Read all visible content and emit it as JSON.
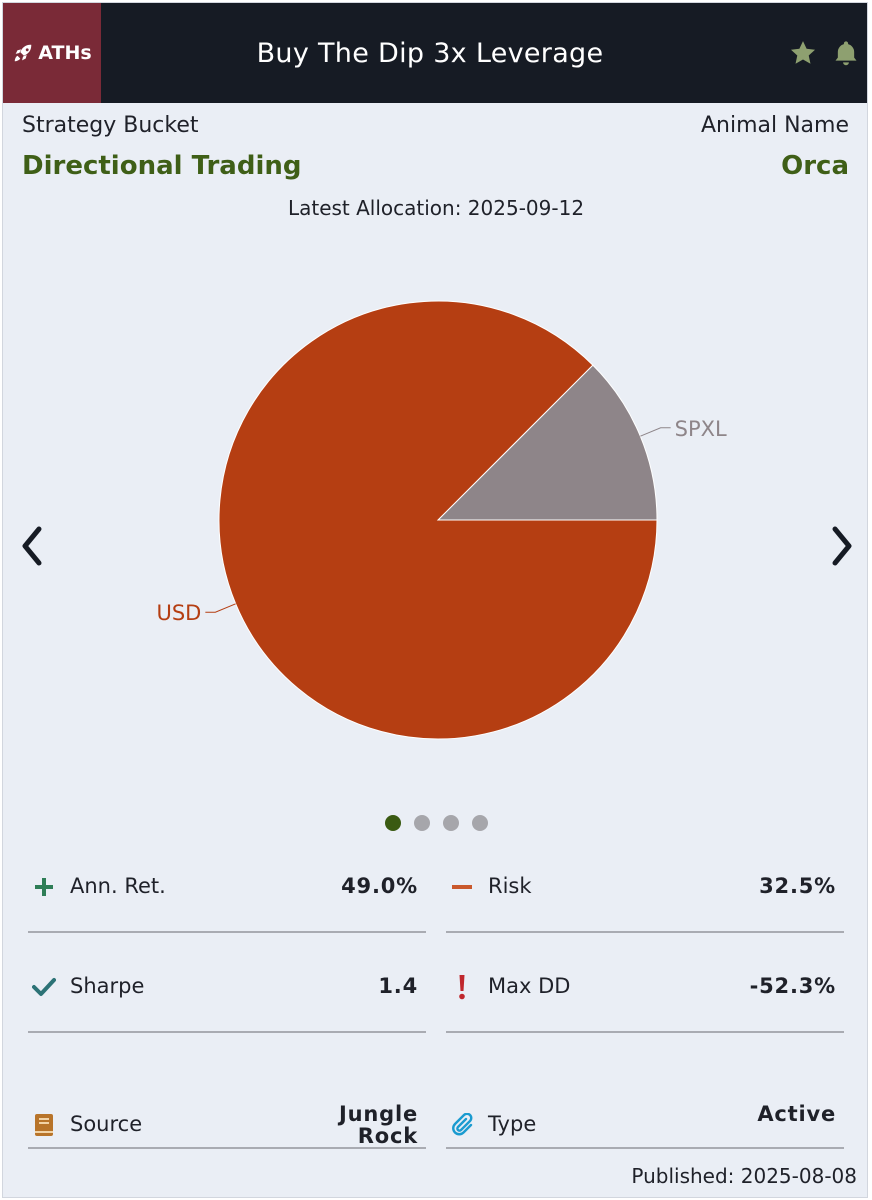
{
  "header": {
    "badge_label": "ATHs",
    "title": "Buy The Dip 3x Leverage"
  },
  "strategy": {
    "bucket_label": "Strategy Bucket",
    "bucket_value": "Directional Trading",
    "animal_label": "Animal Name",
    "animal_value": "Orca",
    "allocation_text": "Latest Allocation: 2025-09-12"
  },
  "chart_data": {
    "type": "pie",
    "title": "",
    "slices": [
      {
        "label": "SPXL",
        "value": 12.5,
        "color": "#8e8589",
        "label_color": "#8e8589"
      },
      {
        "label": "USD",
        "value": 87.5,
        "color": "#b53e12",
        "label_color": "#b53e12"
      }
    ]
  },
  "carousel": {
    "pages": 4,
    "active": 0
  },
  "metrics": [
    {
      "label": "Ann. Ret.",
      "value": "49.0%",
      "icon": "plus-icon",
      "icon_color": "#2e7d56"
    },
    {
      "label": "Risk",
      "value": "32.5%",
      "icon": "minus-icon",
      "icon_color": "#c9582c"
    },
    {
      "label": "Sharpe",
      "value": "1.4",
      "icon": "check-icon",
      "icon_color": "#2c7276"
    },
    {
      "label": "Max DD",
      "value": "-52.3%",
      "icon": "exclamation-icon",
      "icon_color": "#c0272d"
    },
    {
      "label": "Source",
      "value": "Jungle Rock",
      "icon": "book-icon",
      "icon_color": "#b8742a"
    },
    {
      "label": "Type",
      "value": "Active",
      "icon": "paperclip-icon",
      "icon_color": "#1a9bd0"
    }
  ],
  "footer": {
    "published": "Published: 2025-08-08"
  },
  "colors": {
    "header_bg": "#161b24",
    "badge_bg": "#7a2a37",
    "accent_green": "#3f5f17",
    "icon_green": "#8ea070"
  }
}
